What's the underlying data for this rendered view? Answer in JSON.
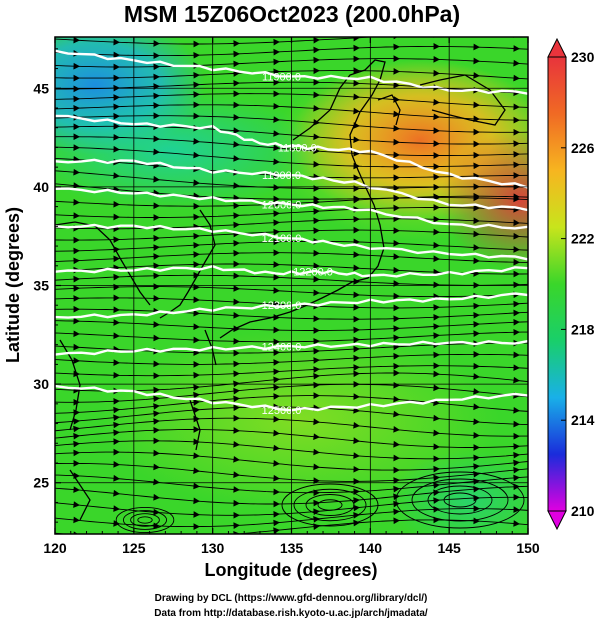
{
  "chart_data": {
    "type": "heatmap",
    "title": "MSM 15Z06Oct2023 (200.0hPa)",
    "xlabel": "Longitude (degrees)",
    "ylabel": "Latitude  (degrees)",
    "xlim": [
      120,
      150
    ],
    "ylim": [
      22.4,
      47.6
    ],
    "x_ticks": [
      "120",
      "125",
      "130",
      "135",
      "140",
      "145",
      "150"
    ],
    "x_tick_values": [
      120,
      125,
      130,
      135,
      140,
      145,
      150
    ],
    "y_ticks": [
      "25",
      "30",
      "35",
      "40",
      "45"
    ],
    "y_tick_values": [
      25,
      30,
      35,
      40,
      45
    ],
    "grid": true,
    "colorbar": {
      "min": 210,
      "max": 230,
      "ticks": [
        "230",
        "226",
        "222",
        "218",
        "214",
        "210"
      ],
      "tick_values": [
        230,
        226,
        222,
        218,
        214,
        210
      ],
      "colors": [
        "#e000e0",
        "#1a2cdb",
        "#19b0e8",
        "#19cf6a",
        "#3ad62a",
        "#c8e41c",
        "#f7b520",
        "#f06a24",
        "#e8343c"
      ]
    },
    "contour_line_color": "#ffffff",
    "contours": [
      {
        "label": "11900.0",
        "points": [
          [
            120,
            46.9
          ],
          [
            125,
            46.4
          ],
          [
            130,
            46.0
          ],
          [
            135,
            45.6
          ],
          [
            140,
            45.5
          ],
          [
            145,
            44.9
          ],
          [
            150,
            44.8
          ]
        ]
      },
      {
        "label": "11800.0",
        "points": [
          [
            120,
            43.6
          ],
          [
            125,
            43.2
          ],
          [
            130,
            43.0
          ],
          [
            133,
            42.2
          ],
          [
            136,
            42.0
          ],
          [
            140,
            41.8
          ],
          [
            145,
            40.6
          ],
          [
            150,
            40.0
          ]
        ]
      },
      {
        "label": "11900.0",
        "points": [
          [
            120,
            41.3
          ],
          [
            125,
            41.3
          ],
          [
            130,
            40.8
          ],
          [
            135,
            40.6
          ],
          [
            139,
            40.2
          ],
          [
            145,
            39.1
          ],
          [
            150,
            38.9
          ]
        ]
      },
      {
        "label": "12000.0",
        "points": [
          [
            120,
            39.9
          ],
          [
            125,
            39.7
          ],
          [
            130,
            39.4
          ],
          [
            135,
            39.1
          ],
          [
            139,
            38.9
          ],
          [
            145,
            38.1
          ],
          [
            150,
            37.9
          ]
        ]
      },
      {
        "label": "12100.0",
        "points": [
          [
            120,
            38.0
          ],
          [
            125,
            38.0
          ],
          [
            130,
            37.8
          ],
          [
            135,
            37.4
          ],
          [
            139,
            37.0
          ],
          [
            145,
            36.6
          ],
          [
            150,
            36.4
          ]
        ]
      },
      {
        "label": "12200.0",
        "points": [
          [
            120,
            35.7
          ],
          [
            125,
            35.8
          ],
          [
            130,
            35.9
          ],
          [
            134,
            35.6
          ],
          [
            137,
            35.7
          ],
          [
            140,
            35.5
          ],
          [
            145,
            35.6
          ],
          [
            150,
            35.9
          ]
        ]
      },
      {
        "label": "12300.0",
        "points": [
          [
            120,
            33.4
          ],
          [
            125,
            33.5
          ],
          [
            130,
            33.8
          ],
          [
            135,
            34.0
          ],
          [
            140,
            34.2
          ],
          [
            145,
            34.3
          ],
          [
            150,
            34.6
          ]
        ]
      },
      {
        "label": "12400.0",
        "points": [
          [
            120,
            31.5
          ],
          [
            125,
            31.7
          ],
          [
            130,
            31.8
          ],
          [
            135,
            31.9
          ],
          [
            140,
            32.0
          ],
          [
            145,
            32.1
          ],
          [
            150,
            32.1
          ]
        ]
      },
      {
        "label": "12500.0",
        "points": [
          [
            120,
            29.9
          ],
          [
            125,
            29.6
          ],
          [
            130,
            29.1
          ],
          [
            135,
            28.7
          ],
          [
            140,
            28.9
          ],
          [
            145,
            29.2
          ],
          [
            150,
            29.5
          ]
        ]
      }
    ],
    "credits": [
      "Drawing by DCL (https://www.gfd-dennou.org/library/dcl/)",
      "Data from http://database.rish.kyoto-u.ac.jp/arch/jmadata/"
    ]
  }
}
